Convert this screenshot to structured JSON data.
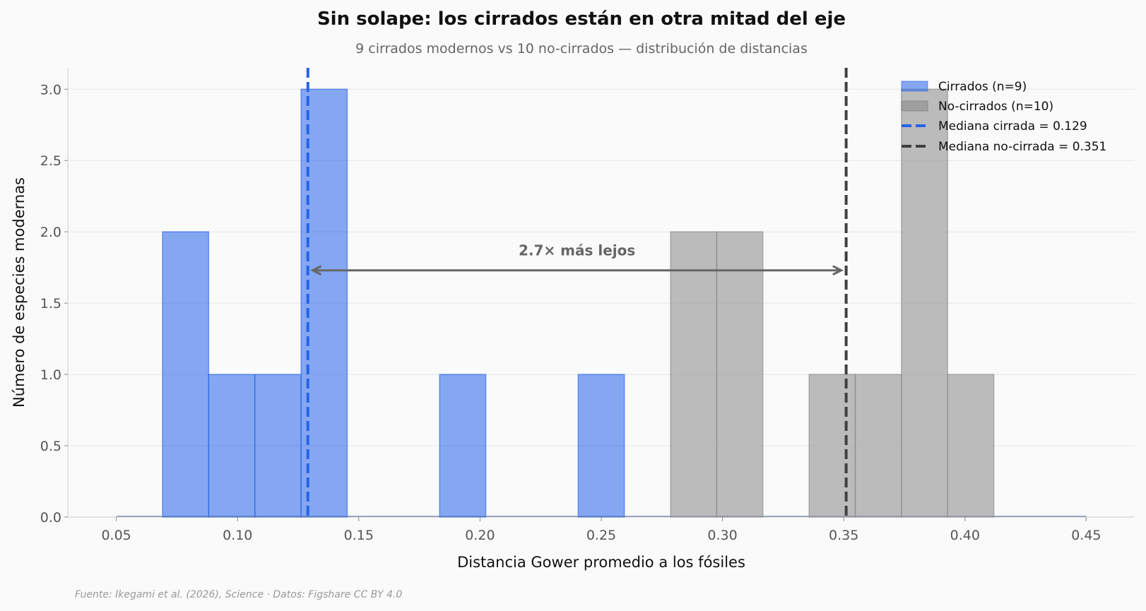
{
  "chart_data": {
    "type": "bar",
    "title": "Sin solape: los cirrados están en otra mitad del eje",
    "subtitle": "9 cirrados modernos vs 10 no-cirrados — distribución de distancias",
    "xlabel": "Distancia Gower promedio a los fósiles",
    "ylabel": "Número de especies modernas",
    "xlim": [
      0.03,
      0.47
    ],
    "ylim": [
      0,
      3.15
    ],
    "xticks": [
      "0.05",
      "0.10",
      "0.15",
      "0.20",
      "0.25",
      "0.30",
      "0.35",
      "0.40",
      "0.45"
    ],
    "yticks": [
      "0.0",
      "0.5",
      "1.0",
      "1.5",
      "2.0",
      "2.5",
      "3.0"
    ],
    "grid": "horizontal",
    "legend_position": "top-right",
    "bin_range": [
      0.05,
      0.45
    ],
    "bins": 21,
    "series": [
      {
        "name": "Cirrados (n=9)",
        "color": "#2563eb",
        "counts": [
          0,
          2,
          1,
          1,
          3,
          0,
          0,
          1,
          0,
          0,
          1,
          0,
          0,
          0,
          0,
          0,
          0,
          0,
          0,
          0,
          0
        ]
      },
      {
        "name": "No-cirrados (n=10)",
        "color": "#999999",
        "counts": [
          0,
          0,
          0,
          0,
          0,
          0,
          0,
          0,
          0,
          0,
          0,
          0,
          2,
          2,
          0,
          1,
          1,
          3,
          1,
          0,
          0
        ]
      }
    ],
    "medians": [
      {
        "name": "Mediana cirrada = 0.129",
        "value": 0.129,
        "color": "#2563eb"
      },
      {
        "name": "Mediana no-cirrada = 0.351",
        "value": 0.351,
        "color": "#404040"
      }
    ],
    "annotation": {
      "text": "2.7× más lejos",
      "x": 0.24,
      "y": 1.87,
      "arrow_from": 0.131,
      "arrow_to": 0.349,
      "arrow_y": 1.73
    }
  },
  "source": "Fuente: Ikegami et al. (2026), Science · Datos: Figshare CC BY 4.0"
}
